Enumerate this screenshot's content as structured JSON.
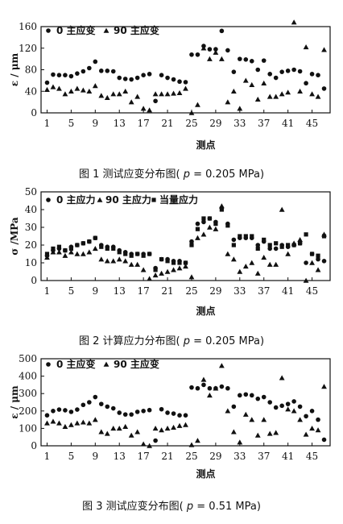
{
  "chart_data": [
    {
      "type": "scatter",
      "caption": {
        "prefix": "图",
        "num": "1",
        "text": "测试应变分布图(",
        "var": "p",
        "value": " = 0.205 MPa)"
      },
      "xlabel": "测点",
      "ylabel": "ε / μm",
      "ylim": [
        0,
        160
      ],
      "yticks": [
        0,
        40,
        80,
        120,
        160
      ],
      "yticklabels": [
        "0",
        "40",
        "80",
        "120",
        "160"
      ],
      "xlim": [
        0,
        48
      ],
      "xticks": [
        1,
        5,
        9,
        13,
        17,
        21,
        25,
        29,
        33,
        37,
        41,
        45
      ],
      "xticklabels": [
        "1",
        "5",
        "9",
        "13",
        "17",
        "21",
        "25",
        "29",
        "33",
        "37",
        "41",
        "45"
      ],
      "legend": [
        "0 主应变",
        "90 主应变"
      ],
      "series": [
        {
          "name": "0 主应变",
          "marker": "circle",
          "x": [
            1,
            2,
            3,
            4,
            5,
            6,
            7,
            8,
            9,
            10,
            11,
            12,
            13,
            14,
            15,
            16,
            17,
            18,
            19,
            20,
            21,
            22,
            23,
            24,
            25,
            26,
            27,
            28,
            29,
            30,
            31,
            32,
            33,
            34,
            35,
            36,
            37,
            38,
            39,
            40,
            41,
            42,
            43,
            44,
            45,
            46,
            47
          ],
          "y": [
            56,
            71,
            70,
            70,
            68,
            73,
            77,
            83,
            95,
            78,
            78,
            77,
            65,
            63,
            62,
            65,
            70,
            72,
            22,
            70,
            65,
            62,
            58,
            57,
            108,
            108,
            124,
            118,
            118,
            152,
            116,
            76,
            100,
            99,
            96,
            80,
            97,
            72,
            65,
            76,
            78,
            80,
            77,
            55,
            72,
            70,
            45
          ]
        },
        {
          "name": "90 主应变",
          "marker": "triangle",
          "x": [
            1,
            2,
            3,
            4,
            5,
            6,
            7,
            8,
            9,
            10,
            11,
            12,
            13,
            14,
            15,
            16,
            17,
            18,
            19,
            20,
            21,
            22,
            23,
            24,
            25,
            26,
            27,
            28,
            29,
            30,
            31,
            32,
            33,
            34,
            35,
            36,
            37,
            38,
            39,
            40,
            41,
            42,
            43,
            44,
            45,
            46,
            47
          ],
          "y": [
            43,
            48,
            45,
            35,
            40,
            45,
            42,
            40,
            50,
            32,
            28,
            35,
            35,
            40,
            20,
            30,
            8,
            5,
            35,
            35,
            35,
            36,
            37,
            45,
            0,
            15,
            120,
            100,
            112,
            100,
            20,
            40,
            8,
            60,
            52,
            25,
            55,
            30,
            30,
            35,
            38,
            168,
            40,
            122,
            35,
            30,
            117
          ]
        }
      ]
    },
    {
      "type": "scatter",
      "caption": {
        "prefix": "图",
        "num": "2",
        "text": "计算应力分布图(",
        "var": "p",
        "value": " = 0.205 MPa)"
      },
      "xlabel": "测点",
      "ylabel": "σ /MPa",
      "ylim": [
        0,
        50
      ],
      "yticks": [
        0,
        10,
        20,
        30,
        40,
        50
      ],
      "yticklabels": [
        "0",
        "10",
        "20",
        "30",
        "40",
        "50"
      ],
      "xlim": [
        0,
        48
      ],
      "xticks": [
        1,
        5,
        9,
        13,
        17,
        21,
        25,
        29,
        33,
        37,
        41,
        45
      ],
      "xticklabels": [
        "1",
        "5",
        "9",
        "13",
        "17",
        "21",
        "25",
        "29",
        "33",
        "37",
        "41",
        "45"
      ],
      "legend": [
        "0 主应力",
        "90 主应力",
        "当量应力"
      ],
      "series": [
        {
          "name": "0 主应力",
          "marker": "circle",
          "x": [
            1,
            2,
            3,
            4,
            5,
            6,
            7,
            8,
            9,
            10,
            11,
            12,
            13,
            14,
            15,
            16,
            17,
            18,
            19,
            20,
            21,
            22,
            23,
            24,
            25,
            26,
            27,
            28,
            29,
            30,
            31,
            32,
            33,
            34,
            35,
            36,
            37,
            38,
            39,
            40,
            41,
            42,
            43,
            44,
            45,
            46,
            47
          ],
          "y": [
            14,
            17,
            18,
            17,
            19,
            20,
            21,
            22,
            24,
            20,
            19,
            19,
            17,
            16,
            15,
            15,
            15,
            15,
            7,
            12,
            12,
            11,
            11,
            10,
            22,
            32,
            33,
            35,
            33,
            41,
            32,
            23,
            24,
            24,
            24,
            20,
            22,
            18,
            18,
            20,
            19,
            20,
            21,
            10,
            15,
            12,
            11
          ]
        },
        {
          "name": "90 主应力",
          "marker": "triangle",
          "x": [
            1,
            2,
            3,
            4,
            5,
            6,
            7,
            8,
            9,
            10,
            11,
            12,
            13,
            14,
            15,
            16,
            17,
            18,
            19,
            20,
            21,
            22,
            23,
            24,
            25,
            26,
            27,
            28,
            29,
            30,
            31,
            32,
            33,
            34,
            35,
            36,
            37,
            38,
            39,
            40,
            41,
            42,
            43,
            44,
            45,
            46,
            47
          ],
          "y": [
            13,
            16,
            16,
            14,
            16,
            15,
            15,
            16,
            18,
            12,
            11,
            11,
            12,
            11,
            9,
            9,
            6,
            1,
            3,
            4,
            5,
            6,
            7,
            8,
            2,
            24,
            26,
            30,
            29,
            42,
            15,
            12,
            5,
            8,
            10,
            4,
            13,
            9,
            9,
            40,
            15,
            21,
            23,
            0,
            10,
            6,
            26
          ]
        },
        {
          "name": "当量应力",
          "marker": "square",
          "x": [
            1,
            2,
            3,
            4,
            5,
            6,
            7,
            8,
            9,
            10,
            11,
            12,
            13,
            14,
            15,
            16,
            17,
            18,
            19,
            20,
            21,
            22,
            23,
            24,
            25,
            26,
            27,
            28,
            29,
            30,
            31,
            32,
            33,
            34,
            35,
            36,
            37,
            38,
            39,
            40,
            41,
            42,
            43,
            44,
            45,
            46,
            47
          ],
          "y": [
            15,
            18,
            19,
            17,
            18,
            20,
            21,
            22,
            24,
            19,
            18,
            18,
            16,
            15,
            14,
            15,
            14,
            15,
            6,
            12,
            11,
            10,
            10,
            10,
            20,
            29,
            35,
            35,
            32,
            40,
            31,
            20,
            25,
            25,
            25,
            18,
            23,
            20,
            21,
            19,
            20,
            20,
            21,
            26,
            15,
            14,
            25
          ]
        }
      ]
    },
    {
      "type": "scatter",
      "caption": {
        "prefix": "图",
        "num": "3",
        "text": "测试应变分布图(",
        "var": "p",
        "value": " = 0.51 MPa)"
      },
      "xlabel": "测点",
      "ylabel": "ε / μm",
      "ylim": [
        0,
        500
      ],
      "yticks": [
        0,
        100,
        200,
        300,
        400,
        500
      ],
      "yticklabels": [
        "0",
        "100",
        "200",
        "300",
        "400",
        "500"
      ],
      "xlim": [
        0,
        48
      ],
      "xticks": [
        1,
        5,
        9,
        13,
        17,
        21,
        25,
        29,
        33,
        37,
        41,
        45
      ],
      "xticklabels": [
        "1",
        "5",
        "9",
        "13",
        "17",
        "21",
        "25",
        "29",
        "33",
        "37",
        "41",
        "45"
      ],
      "legend": [
        "0 主应变",
        "90 主应变"
      ],
      "series": [
        {
          "name": "0 主应变",
          "marker": "circle",
          "x": [
            1,
            2,
            3,
            4,
            5,
            6,
            7,
            8,
            9,
            10,
            11,
            12,
            13,
            14,
            15,
            16,
            17,
            18,
            19,
            20,
            21,
            22,
            23,
            24,
            25,
            26,
            27,
            28,
            29,
            30,
            31,
            32,
            33,
            34,
            35,
            36,
            37,
            38,
            39,
            40,
            41,
            42,
            43,
            44,
            45,
            46,
            47
          ],
          "y": [
            175,
            200,
            208,
            204,
            195,
            208,
            235,
            250,
            280,
            240,
            225,
            215,
            190,
            180,
            180,
            195,
            200,
            205,
            30,
            210,
            190,
            185,
            175,
            175,
            335,
            330,
            350,
            330,
            330,
            340,
            330,
            225,
            290,
            295,
            290,
            270,
            280,
            250,
            220,
            230,
            240,
            255,
            225,
            170,
            200,
            150,
            35
          ]
        },
        {
          "name": "90 主应变",
          "marker": "triangle",
          "x": [
            1,
            2,
            3,
            4,
            5,
            6,
            7,
            8,
            9,
            10,
            11,
            12,
            13,
            14,
            15,
            16,
            17,
            18,
            19,
            20,
            21,
            22,
            23,
            24,
            25,
            26,
            27,
            28,
            29,
            30,
            31,
            32,
            33,
            34,
            35,
            36,
            37,
            38,
            39,
            40,
            41,
            42,
            43,
            44,
            45,
            46,
            47
          ],
          "y": [
            130,
            140,
            130,
            110,
            120,
            130,
            135,
            130,
            150,
            80,
            70,
            100,
            100,
            110,
            60,
            80,
            10,
            0,
            100,
            90,
            100,
            105,
            115,
            120,
            5,
            30,
            380,
            290,
            330,
            460,
            200,
            80,
            20,
            180,
            150,
            60,
            150,
            70,
            75,
            390,
            210,
            200,
            150,
            65,
            100,
            90,
            340
          ]
        }
      ]
    }
  ]
}
